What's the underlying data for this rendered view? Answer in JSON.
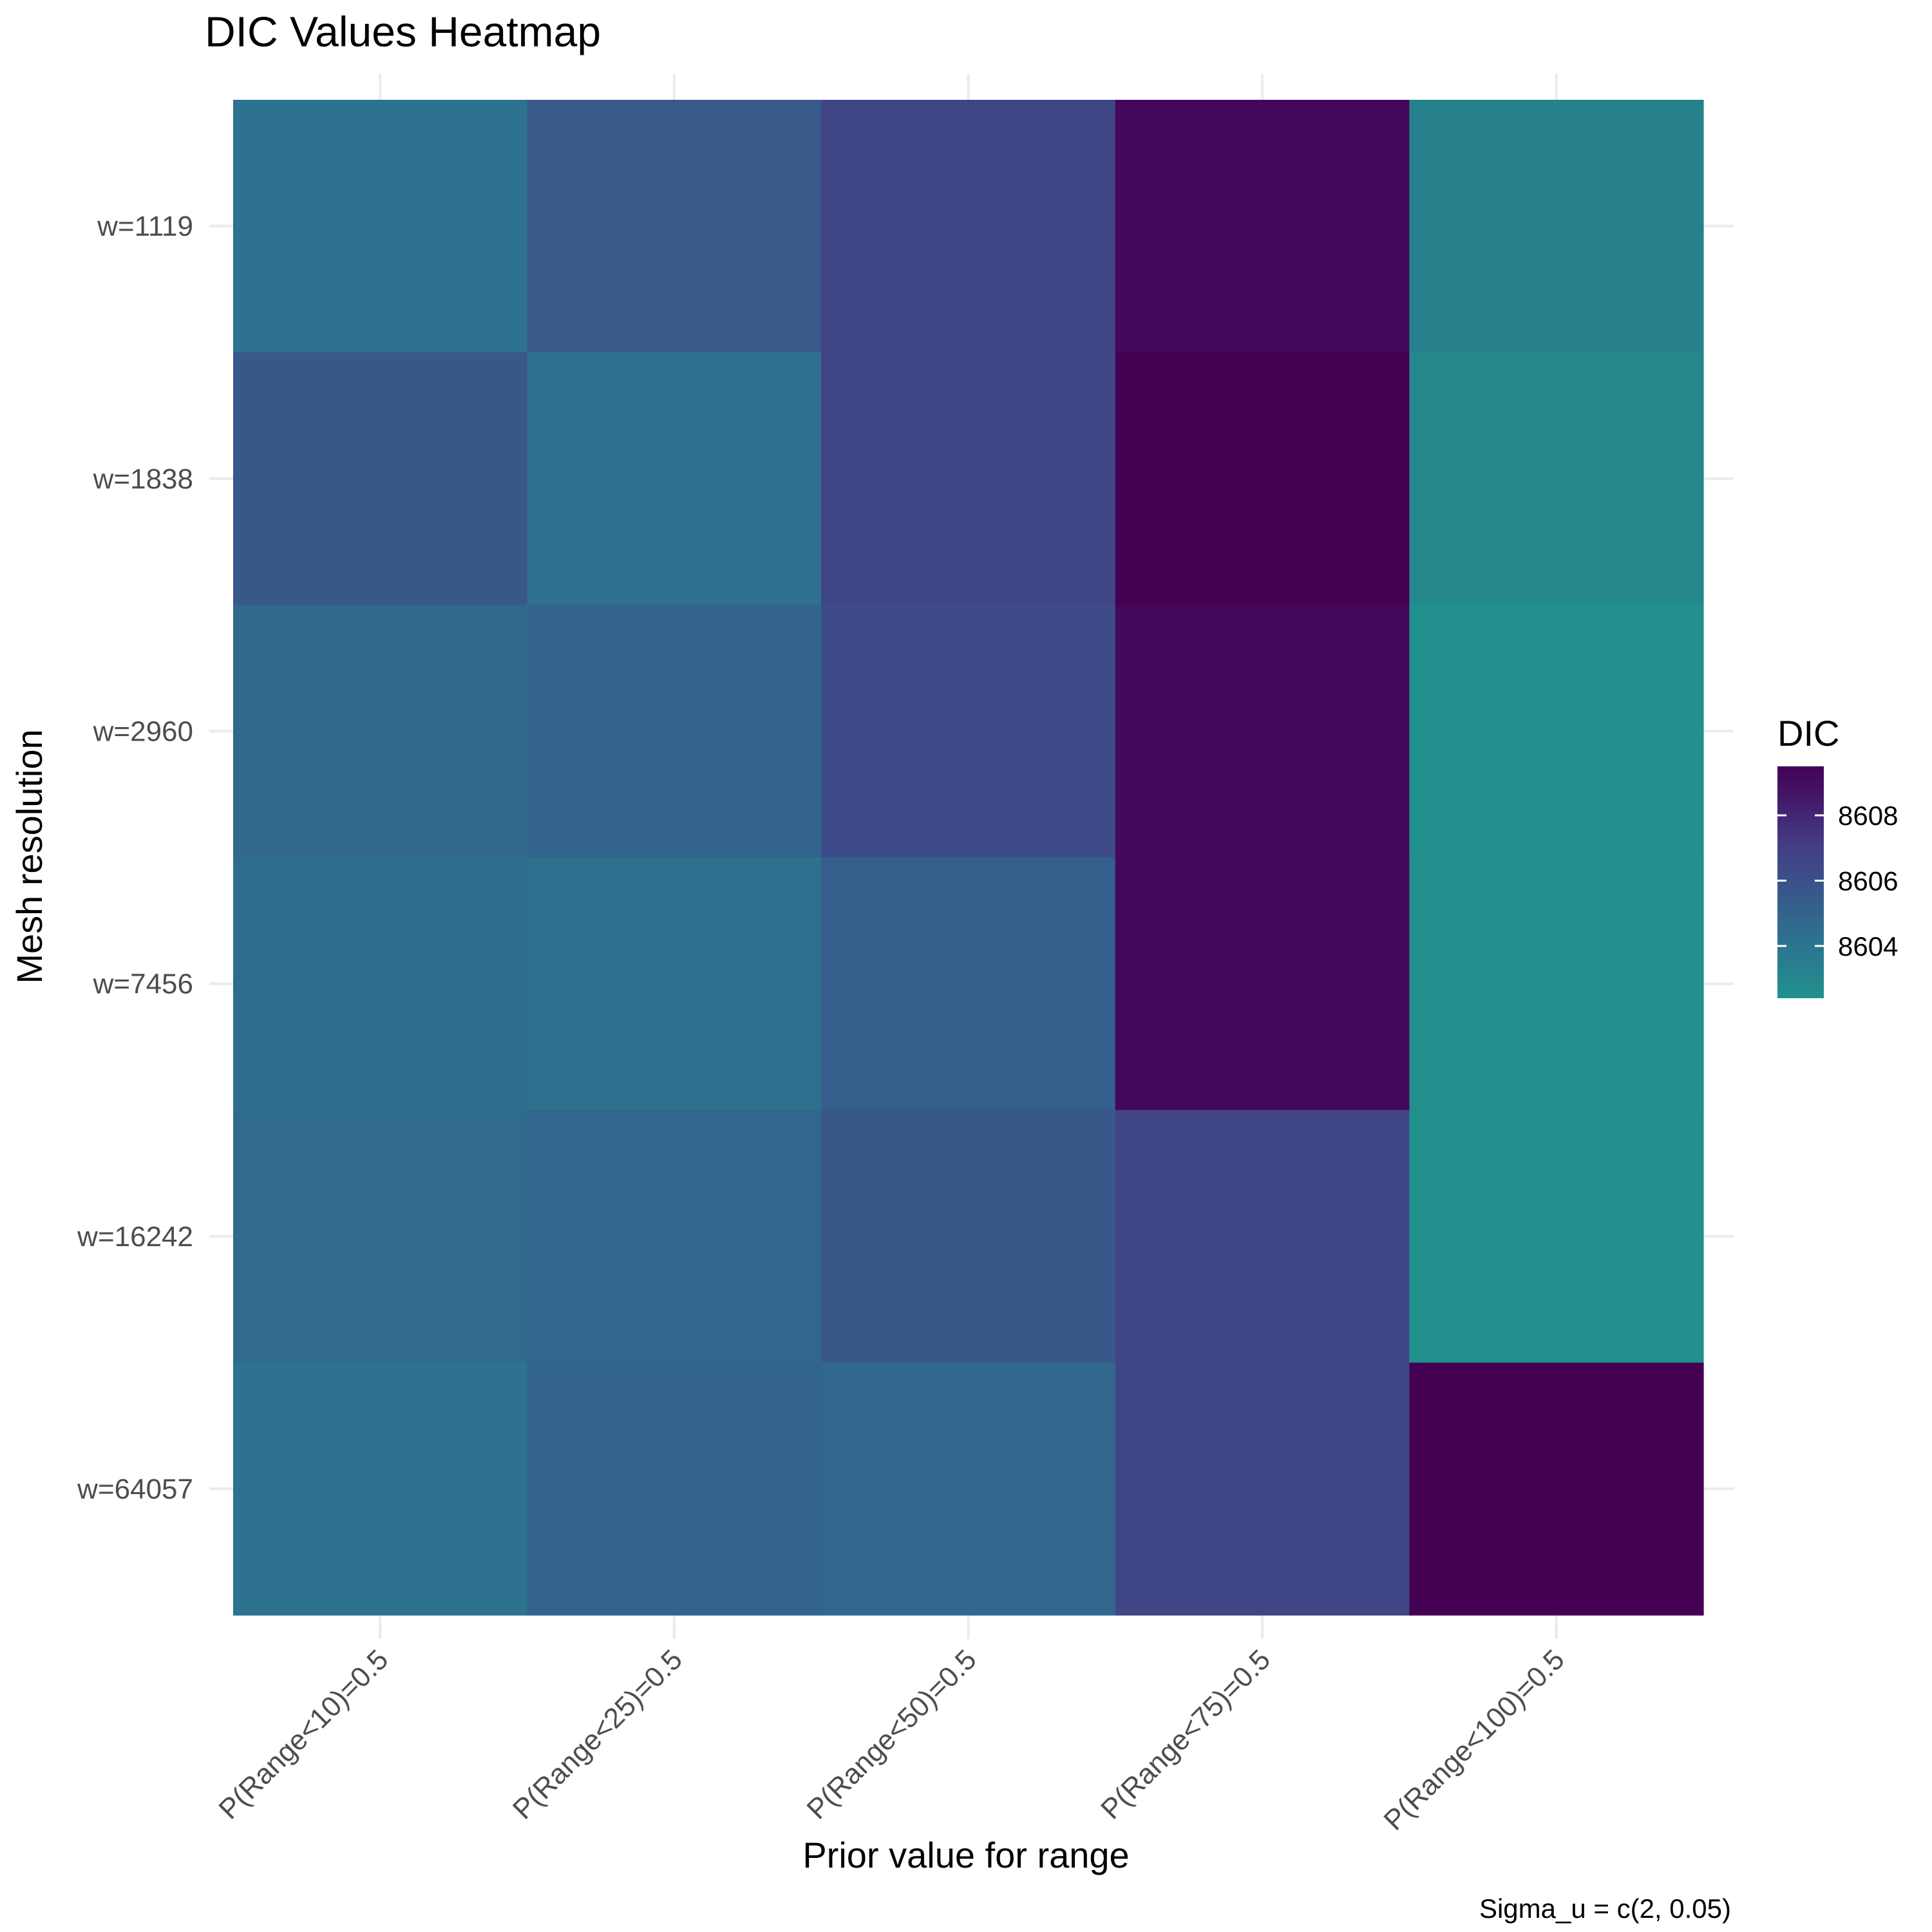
{
  "chart_data": {
    "type": "heatmap",
    "title": "DIC Values Heatmap",
    "xlabel": "Prior value for range",
    "ylabel": "Mesh resolution",
    "caption": "Sigma_u = c(2, 0.05)",
    "x_categories": [
      "P(Range<10)=0.5",
      "P(Range<25)=0.5",
      "P(Range<50)=0.5",
      "P(Range<75)=0.5",
      "P(Range<100)=0.5"
    ],
    "y_categories": [
      "w=1119",
      "w=1838",
      "w=2960",
      "w=7456",
      "w=16242",
      "w=64057"
    ],
    "values": [
      [
        8604.2,
        8605.5,
        8606.6,
        8609.2,
        8603.3
      ],
      [
        8605.6,
        8604.3,
        8606.6,
        8609.5,
        8602.9
      ],
      [
        8604.7,
        8605.0,
        8606.3,
        8609.2,
        8602.4
      ],
      [
        8604.5,
        8604.3,
        8605.3,
        8609.2,
        8602.5
      ],
      [
        8604.6,
        8604.8,
        8605.6,
        8606.6,
        8602.4
      ],
      [
        8604.2,
        8605.0,
        8604.8,
        8606.6,
        8609.5
      ]
    ],
    "legend": {
      "title": "DIC",
      "ticks": [
        8604,
        8606,
        8608
      ],
      "range": [
        8602.4,
        8609.5
      ],
      "position": "right"
    },
    "colorscale": [
      "#21908d",
      "#31688e",
      "#443b84",
      "#440154"
    ],
    "grid": true
  }
}
